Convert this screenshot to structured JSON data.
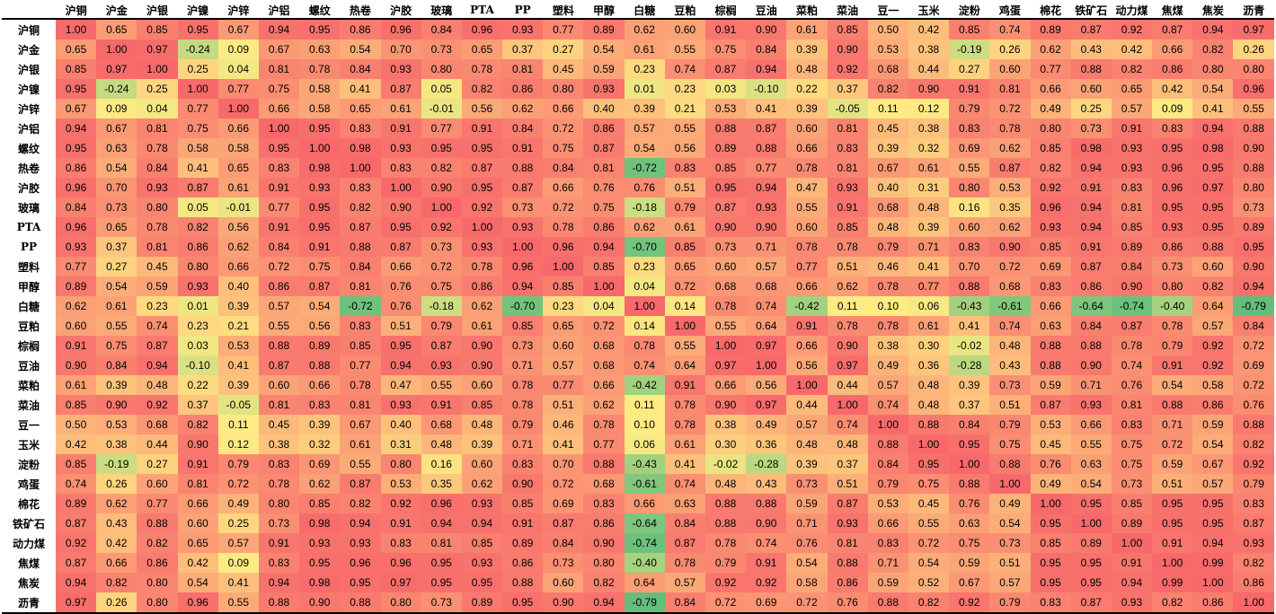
{
  "chart_data": {
    "type": "heatmap",
    "title": "",
    "labels": [
      "沪铜",
      "沪金",
      "沪银",
      "沪镍",
      "沪锌",
      "沪铝",
      "螺纹",
      "热卷",
      "沪胶",
      "玻璃",
      "PTA",
      "PP",
      "塑料",
      "甲醇",
      "白糖",
      "豆粕",
      "棕榈",
      "豆油",
      "菜粕",
      "菜油",
      "豆一",
      "玉米",
      "淀粉",
      "鸡蛋",
      "棉花",
      "铁矿石",
      "动力煤",
      "焦煤",
      "焦炭",
      "沥青"
    ],
    "matrix": [
      [
        1.0,
        0.65,
        0.85,
        0.95,
        0.67,
        0.94,
        0.95,
        0.86,
        0.96,
        0.84,
        0.96,
        0.93,
        0.77,
        0.89,
        0.62,
        0.6,
        0.91,
        0.9,
        0.61,
        0.85,
        0.5,
        0.42,
        0.85,
        0.74,
        0.89,
        0.87,
        0.92,
        0.87,
        0.94,
        0.97
      ],
      [
        0.65,
        1.0,
        0.97,
        -0.24,
        0.09,
        0.67,
        0.63,
        0.54,
        0.7,
        0.73,
        0.65,
        0.37,
        0.27,
        0.54,
        0.61,
        0.55,
        0.75,
        0.84,
        0.39,
        0.9,
        0.53,
        0.38,
        -0.19,
        0.26,
        0.62,
        0.43,
        0.42,
        0.66,
        0.82,
        0.26
      ],
      [
        0.85,
        0.97,
        1.0,
        0.25,
        0.04,
        0.81,
        0.78,
        0.84,
        0.93,
        0.8,
        0.78,
        0.81,
        0.45,
        0.59,
        0.23,
        0.74,
        0.87,
        0.94,
        0.48,
        0.92,
        0.68,
        0.44,
        0.27,
        0.6,
        0.77,
        0.88,
        0.82,
        0.86,
        0.8,
        0.8
      ],
      [
        0.95,
        -0.24,
        0.25,
        1.0,
        0.77,
        0.75,
        0.58,
        0.41,
        0.87,
        0.05,
        0.82,
        0.86,
        0.8,
        0.93,
        0.01,
        0.23,
        0.03,
        -0.1,
        0.22,
        0.37,
        0.82,
        0.9,
        0.91,
        0.81,
        0.66,
        0.6,
        0.65,
        0.42,
        0.54,
        0.96
      ],
      [
        0.67,
        0.09,
        0.04,
        0.77,
        1.0,
        0.66,
        0.58,
        0.65,
        0.61,
        -0.01,
        0.56,
        0.62,
        0.66,
        0.4,
        0.39,
        0.21,
        0.53,
        0.41,
        0.39,
        -0.05,
        0.11,
        0.12,
        0.79,
        0.72,
        0.49,
        0.25,
        0.57,
        0.09,
        0.41,
        0.55
      ],
      [
        0.94,
        0.67,
        0.81,
        0.75,
        0.66,
        1.0,
        0.95,
        0.83,
        0.91,
        0.77,
        0.91,
        0.84,
        0.72,
        0.86,
        0.57,
        0.55,
        0.88,
        0.87,
        0.6,
        0.81,
        0.45,
        0.38,
        0.83,
        0.78,
        0.8,
        0.73,
        0.91,
        0.83,
        0.94,
        0.88
      ],
      [
        0.95,
        0.63,
        0.78,
        0.58,
        0.58,
        0.95,
        1.0,
        0.98,
        0.93,
        0.95,
        0.95,
        0.91,
        0.75,
        0.87,
        0.54,
        0.56,
        0.89,
        0.88,
        0.66,
        0.83,
        0.39,
        0.32,
        0.69,
        0.62,
        0.85,
        0.98,
        0.93,
        0.95,
        0.98,
        0.9
      ],
      [
        0.86,
        0.54,
        0.84,
        0.41,
        0.65,
        0.83,
        0.98,
        1.0,
        0.83,
        0.82,
        0.87,
        0.88,
        0.84,
        0.81,
        -0.72,
        0.83,
        0.85,
        0.77,
        0.78,
        0.81,
        0.67,
        0.61,
        0.55,
        0.87,
        0.82,
        0.94,
        0.93,
        0.96,
        0.95,
        0.88
      ],
      [
        0.96,
        0.7,
        0.93,
        0.87,
        0.61,
        0.91,
        0.93,
        0.83,
        1.0,
        0.9,
        0.95,
        0.87,
        0.66,
        0.76,
        0.76,
        0.51,
        0.95,
        0.94,
        0.47,
        0.93,
        0.4,
        0.31,
        0.8,
        0.53,
        0.92,
        0.91,
        0.83,
        0.96,
        0.97,
        0.8
      ],
      [
        0.84,
        0.73,
        0.8,
        0.05,
        -0.01,
        0.77,
        0.95,
        0.82,
        0.9,
        1.0,
        0.92,
        0.73,
        0.72,
        0.75,
        -0.18,
        0.79,
        0.87,
        0.93,
        0.55,
        0.91,
        0.68,
        0.48,
        0.16,
        0.35,
        0.96,
        0.94,
        0.81,
        0.95,
        0.95,
        0.73
      ],
      [
        0.96,
        0.65,
        0.78,
        0.82,
        0.56,
        0.91,
        0.95,
        0.87,
        0.95,
        0.92,
        1.0,
        0.93,
        0.78,
        0.86,
        0.62,
        0.61,
        0.9,
        0.9,
        0.6,
        0.85,
        0.48,
        0.39,
        0.6,
        0.62,
        0.93,
        0.94,
        0.85,
        0.93,
        0.95,
        0.89
      ],
      [
        0.93,
        0.37,
        0.81,
        0.86,
        0.62,
        0.84,
        0.91,
        0.88,
        0.87,
        0.73,
        0.93,
        1.0,
        0.96,
        0.94,
        -0.7,
        0.85,
        0.73,
        0.71,
        0.78,
        0.78,
        0.79,
        0.71,
        0.83,
        0.9,
        0.85,
        0.91,
        0.89,
        0.86,
        0.88,
        0.95
      ],
      [
        0.77,
        0.27,
        0.45,
        0.8,
        0.66,
        0.72,
        0.75,
        0.84,
        0.66,
        0.72,
        0.78,
        0.96,
        1.0,
        0.85,
        0.23,
        0.65,
        0.6,
        0.57,
        0.77,
        0.51,
        0.46,
        0.41,
        0.7,
        0.72,
        0.69,
        0.87,
        0.84,
        0.73,
        0.6,
        0.9
      ],
      [
        0.89,
        0.54,
        0.59,
        0.93,
        0.4,
        0.86,
        0.87,
        0.81,
        0.76,
        0.75,
        0.86,
        0.94,
        0.85,
        1.0,
        0.04,
        0.72,
        0.68,
        0.68,
        0.66,
        0.62,
        0.78,
        0.77,
        0.88,
        0.68,
        0.83,
        0.86,
        0.9,
        0.8,
        0.82,
        0.94
      ],
      [
        0.62,
        0.61,
        0.23,
        0.01,
        0.39,
        0.57,
        0.54,
        -0.72,
        0.76,
        -0.18,
        0.62,
        -0.7,
        0.23,
        0.04,
        1.0,
        0.14,
        0.78,
        0.74,
        -0.42,
        0.11,
        0.1,
        0.06,
        -0.43,
        -0.61,
        0.66,
        -0.64,
        -0.74,
        -0.4,
        0.64,
        -0.79
      ],
      [
        0.6,
        0.55,
        0.74,
        0.23,
        0.21,
        0.55,
        0.56,
        0.83,
        0.51,
        0.79,
        0.61,
        0.85,
        0.65,
        0.72,
        0.14,
        1.0,
        0.55,
        0.64,
        0.91,
        0.78,
        0.78,
        0.61,
        0.41,
        0.74,
        0.63,
        0.84,
        0.87,
        0.78,
        0.57,
        0.84
      ],
      [
        0.91,
        0.75,
        0.87,
        0.03,
        0.53,
        0.88,
        0.89,
        0.85,
        0.95,
        0.87,
        0.9,
        0.73,
        0.6,
        0.68,
        0.78,
        0.55,
        1.0,
        0.97,
        0.66,
        0.9,
        0.38,
        0.3,
        -0.02,
        0.48,
        0.88,
        0.88,
        0.78,
        0.79,
        0.92,
        0.72
      ],
      [
        0.9,
        0.84,
        0.94,
        -0.1,
        0.41,
        0.87,
        0.88,
        0.77,
        0.94,
        0.93,
        0.9,
        0.71,
        0.57,
        0.68,
        0.74,
        0.64,
        0.97,
        1.0,
        0.56,
        0.97,
        0.49,
        0.36,
        -0.28,
        0.43,
        0.88,
        0.9,
        0.74,
        0.91,
        0.92,
        0.69
      ],
      [
        0.61,
        0.39,
        0.48,
        0.22,
        0.39,
        0.6,
        0.66,
        0.78,
        0.47,
        0.55,
        0.6,
        0.78,
        0.77,
        0.66,
        -0.42,
        0.91,
        0.66,
        0.56,
        1.0,
        0.44,
        0.57,
        0.48,
        0.39,
        0.73,
        0.59,
        0.71,
        0.76,
        0.54,
        0.58,
        0.72
      ],
      [
        0.85,
        0.9,
        0.92,
        0.37,
        -0.05,
        0.81,
        0.83,
        0.81,
        0.93,
        0.91,
        0.85,
        0.78,
        0.51,
        0.62,
        0.11,
        0.78,
        0.9,
        0.97,
        0.44,
        1.0,
        0.74,
        0.48,
        0.37,
        0.51,
        0.87,
        0.93,
        0.81,
        0.88,
        0.86,
        0.76
      ],
      [
        0.5,
        0.53,
        0.68,
        0.82,
        0.11,
        0.45,
        0.39,
        0.67,
        0.4,
        0.68,
        0.48,
        0.79,
        0.46,
        0.78,
        0.1,
        0.78,
        0.38,
        0.49,
        0.57,
        0.74,
        1.0,
        0.88,
        0.84,
        0.79,
        0.53,
        0.66,
        0.83,
        0.71,
        0.59,
        0.88
      ],
      [
        0.42,
        0.38,
        0.44,
        0.9,
        0.12,
        0.38,
        0.32,
        0.61,
        0.31,
        0.48,
        0.39,
        0.71,
        0.41,
        0.77,
        0.06,
        0.61,
        0.3,
        0.36,
        0.48,
        0.48,
        0.88,
        1.0,
        0.95,
        0.75,
        0.45,
        0.55,
        0.75,
        0.72,
        0.54,
        0.82
      ],
      [
        0.85,
        -0.19,
        0.27,
        0.91,
        0.79,
        0.83,
        0.69,
        0.55,
        0.8,
        0.16,
        0.6,
        0.83,
        0.7,
        0.88,
        -0.43,
        0.41,
        -0.02,
        -0.28,
        0.39,
        0.37,
        0.84,
        0.95,
        1.0,
        0.88,
        0.76,
        0.63,
        0.75,
        0.59,
        0.67,
        0.92
      ],
      [
        0.74,
        0.26,
        0.6,
        0.81,
        0.72,
        0.78,
        0.62,
        0.87,
        0.53,
        0.35,
        0.62,
        0.9,
        0.72,
        0.68,
        -0.61,
        0.74,
        0.48,
        0.43,
        0.73,
        0.51,
        0.79,
        0.75,
        0.88,
        1.0,
        0.49,
        0.54,
        0.73,
        0.51,
        0.57,
        0.79
      ],
      [
        0.89,
        0.62,
        0.77,
        0.66,
        0.49,
        0.8,
        0.85,
        0.82,
        0.92,
        0.96,
        0.93,
        0.85,
        0.69,
        0.83,
        0.66,
        0.63,
        0.88,
        0.88,
        0.59,
        0.87,
        0.53,
        0.45,
        0.76,
        0.49,
        1.0,
        0.95,
        0.85,
        0.95,
        0.95,
        0.83
      ],
      [
        0.87,
        0.43,
        0.88,
        0.6,
        0.25,
        0.73,
        0.98,
        0.94,
        0.91,
        0.94,
        0.94,
        0.91,
        0.87,
        0.86,
        -0.64,
        0.84,
        0.88,
        0.9,
        0.71,
        0.93,
        0.66,
        0.55,
        0.63,
        0.54,
        0.95,
        1.0,
        0.89,
        0.95,
        0.95,
        0.87
      ],
      [
        0.92,
        0.42,
        0.82,
        0.65,
        0.57,
        0.91,
        0.93,
        0.93,
        0.83,
        0.81,
        0.85,
        0.89,
        0.84,
        0.9,
        -0.74,
        0.87,
        0.78,
        0.74,
        0.76,
        0.81,
        0.83,
        0.72,
        0.75,
        0.73,
        0.85,
        0.89,
        1.0,
        0.91,
        0.94,
        0.93
      ],
      [
        0.87,
        0.66,
        0.86,
        0.42,
        0.09,
        0.83,
        0.95,
        0.96,
        0.96,
        0.95,
        0.93,
        0.86,
        0.73,
        0.8,
        -0.4,
        0.78,
        0.79,
        0.91,
        0.54,
        0.88,
        0.71,
        0.54,
        0.59,
        0.51,
        0.95,
        0.95,
        0.91,
        1.0,
        0.99,
        0.82
      ],
      [
        0.94,
        0.82,
        0.8,
        0.54,
        0.41,
        0.94,
        0.98,
        0.95,
        0.97,
        0.95,
        0.95,
        0.88,
        0.6,
        0.82,
        0.64,
        0.57,
        0.92,
        0.92,
        0.58,
        0.86,
        0.59,
        0.52,
        0.67,
        0.57,
        0.95,
        0.95,
        0.94,
        0.99,
        1.0,
        0.86
      ],
      [
        0.97,
        0.26,
        0.8,
        0.96,
        0.55,
        0.88,
        0.9,
        0.88,
        0.8,
        0.73,
        0.89,
        0.95,
        0.9,
        0.94,
        -0.79,
        0.84,
        0.72,
        0.69,
        0.72,
        0.76,
        0.88,
        0.82,
        0.92,
        0.79,
        0.83,
        0.87,
        0.93,
        0.82,
        0.86,
        1.0
      ]
    ],
    "value_range": [
      -0.79,
      1.0
    ],
    "color_scale": [
      "#63be7b",
      "#ffeb84",
      "#f8696b"
    ],
    "grid": false,
    "legend": "none"
  }
}
